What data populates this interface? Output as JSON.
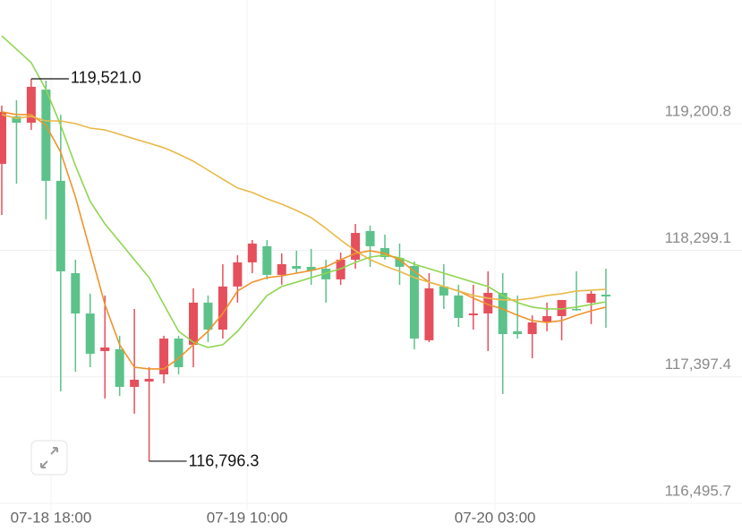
{
  "chart_data": {
    "type": "candlestick",
    "categories": [
      null,
      null,
      null,
      null,
      null,
      null,
      null,
      null,
      null,
      null,
      null,
      null,
      null,
      null,
      null,
      null,
      null,
      null,
      null,
      null,
      null,
      null,
      null,
      null,
      null,
      null,
      null,
      null,
      null,
      null,
      null,
      null,
      null,
      null,
      null,
      null,
      null,
      null,
      null,
      null,
      null,
      null
    ],
    "open": [
      118915,
      119253,
      119208,
      119444,
      118794,
      118136,
      117849,
      117581,
      117594,
      117326,
      117364,
      117415,
      117670,
      117626,
      117926,
      117734,
      118041,
      118213,
      118328,
      118124,
      118187,
      118181,
      118168,
      118092,
      118232,
      118436,
      118315,
      118245,
      118187,
      117658,
      118041,
      117977,
      117836,
      117849,
      117996,
      117722,
      117702,
      117785,
      117830,
      117881,
      117926,
      117983
    ],
    "high": [
      119330,
      119368,
      119521.0,
      119508,
      119266,
      118232,
      117990,
      117977,
      117690,
      117881,
      117466,
      117690,
      117690,
      118028,
      117977,
      118200,
      118264,
      118372,
      118372,
      118277,
      118296,
      118309,
      118232,
      118283,
      118487,
      118475,
      118411,
      118347,
      118219,
      118136,
      118200,
      118053,
      118053,
      118149,
      118136,
      117977,
      117836,
      117926,
      117945,
      118149,
      118009,
      118168
    ],
    "low": [
      118551,
      118774,
      119157,
      118519,
      117294,
      117434,
      117466,
      117243,
      117262,
      117135,
      116796.3,
      117351,
      117415,
      117466,
      117645,
      117670,
      117926,
      118136,
      118092,
      118053,
      118136,
      118053,
      117926,
      118053,
      118168,
      118181,
      118232,
      118053,
      117594,
      117645,
      117881,
      117753,
      117734,
      117581,
      117275,
      117670,
      117530,
      117722,
      117658,
      117868,
      117773,
      117747
    ],
    "close": [
      119285,
      119208,
      119464,
      118794,
      118149,
      117849,
      117562,
      117607,
      117326,
      117377,
      117383,
      117670,
      117466,
      117926,
      117734,
      118041,
      118213,
      118347,
      118124,
      118200,
      118168,
      118155,
      118092,
      118232,
      118423,
      118328,
      118251,
      118181,
      117670,
      118028,
      117977,
      117817,
      117849,
      117996,
      117702,
      117702,
      117785,
      117830,
      117945,
      117875,
      117990,
      117970
    ],
    "up_color": "#e5505c",
    "down_color": "#5cc28a",
    "series": [
      {
        "color": "#8fd650",
        "values": [
          119827,
          119732,
          119636,
          119444,
          119189,
          118902,
          118647,
          118487,
          118360,
          118232,
          118104,
          117913,
          117722,
          117645,
          117607,
          117626,
          117722,
          117849,
          117977,
          118041,
          118072,
          118104,
          118136,
          118168,
          118213,
          118251,
          118264,
          118245,
          118200,
          118168,
          118136,
          118104,
          118072,
          118041,
          117977,
          117926,
          117894,
          117881,
          117881,
          117894,
          117913,
          117932
        ]
      },
      {
        "color": "#f0932b",
        "values": [
          119285,
          119266,
          119266,
          119189,
          118998,
          118679,
          118296,
          117913,
          117626,
          117466,
          117454,
          117454,
          117530,
          117626,
          117722,
          117849,
          118009,
          118072,
          118104,
          118117,
          118136,
          118155,
          118181,
          118232,
          118277,
          118296,
          118277,
          118232,
          118149,
          118072,
          118041,
          118009,
          117958,
          117913,
          117881,
          117836,
          117798,
          117785,
          117798,
          117836,
          117868,
          117894
        ]
      },
      {
        "color": "#e9b949",
        "values": [
          119266,
          119240,
          119253,
          119221,
          119221,
          119202,
          119170,
          119157,
          119125,
          119093,
          119062,
          119030,
          118985,
          118934,
          118870,
          118806,
          118743,
          118711,
          118666,
          118628,
          118583,
          118532,
          118455,
          118372,
          118296,
          118232,
          118187,
          118149,
          118104,
          118072,
          118041,
          118009,
          117977,
          117958,
          117945,
          117945,
          117958,
          117977,
          117990,
          118009,
          118015,
          118021
        ]
      }
    ],
    "xlim": [
      -0.12,
      42.4
    ],
    "xticks": [
      {
        "value": 3.34,
        "label": "07-18 18:00"
      },
      {
        "value": 16.65,
        "label": "07-19 10:00"
      },
      {
        "value": 33.48,
        "label": "07-20 03:00"
      }
    ],
    "ylim": [
      116445,
      120082.5
    ],
    "yticks": [
      {
        "value": 116495.7,
        "label": "116,495.7"
      },
      {
        "value": 117397.4,
        "label": "117,397.4"
      },
      {
        "value": 118299.1,
        "label": "118,299.1"
      },
      {
        "value": 119200.8,
        "label": "119,200.8"
      }
    ],
    "grid": true,
    "annotations": [
      {
        "label": "119,521.0",
        "x": 2,
        "y": 119521.0
      },
      {
        "label": "116,796.3",
        "x": 10,
        "y": 116796.3
      }
    ]
  }
}
